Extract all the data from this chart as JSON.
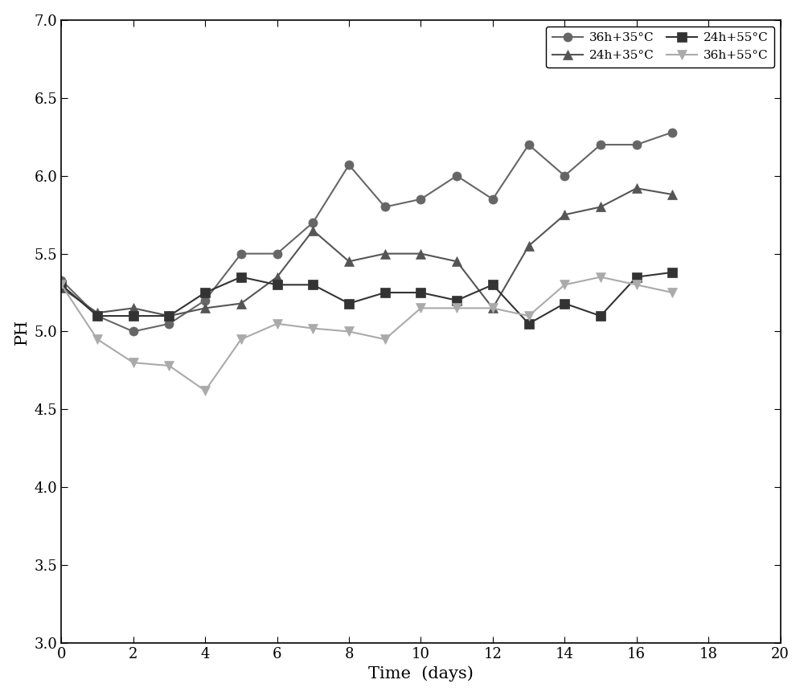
{
  "series": [
    {
      "label": "36h+35°C",
      "color": "#666666",
      "marker": "o",
      "markersize": 8,
      "linewidth": 1.5,
      "x": [
        0,
        1,
        2,
        3,
        4,
        5,
        6,
        7,
        8,
        9,
        10,
        11,
        12,
        13,
        14,
        15,
        16,
        17
      ],
      "y": [
        5.33,
        5.1,
        5.0,
        5.05,
        5.2,
        5.5,
        5.5,
        5.7,
        6.07,
        5.8,
        5.85,
        6.0,
        5.85,
        6.2,
        6.0,
        6.2,
        6.2,
        6.28
      ]
    },
    {
      "label": "24h+35°C",
      "color": "#555555",
      "marker": "^",
      "markersize": 8,
      "linewidth": 1.5,
      "x": [
        0,
        1,
        2,
        3,
        4,
        5,
        6,
        7,
        8,
        9,
        10,
        11,
        12,
        13,
        14,
        15,
        16,
        17
      ],
      "y": [
        5.28,
        5.12,
        5.15,
        5.1,
        5.15,
        5.18,
        5.35,
        5.65,
        5.45,
        5.5,
        5.5,
        5.45,
        5.15,
        5.55,
        5.75,
        5.8,
        5.92,
        5.88
      ]
    },
    {
      "label": "24h+55°C",
      "color": "#333333",
      "marker": "s",
      "markersize": 8,
      "linewidth": 1.5,
      "x": [
        0,
        1,
        2,
        3,
        4,
        5,
        6,
        7,
        8,
        9,
        10,
        11,
        12,
        13,
        14,
        15,
        16,
        17
      ],
      "y": [
        5.3,
        5.1,
        5.1,
        5.1,
        5.25,
        5.35,
        5.3,
        5.3,
        5.18,
        5.25,
        5.25,
        5.2,
        5.3,
        5.05,
        5.18,
        5.1,
        5.35,
        5.38
      ]
    },
    {
      "label": "36h+55°C",
      "color": "#aaaaaa",
      "marker": "v",
      "markersize": 8,
      "linewidth": 1.5,
      "x": [
        0,
        1,
        2,
        3,
        4,
        5,
        6,
        7,
        8,
        9,
        10,
        11,
        12,
        13,
        14,
        15,
        16,
        17
      ],
      "y": [
        5.3,
        4.95,
        4.8,
        4.78,
        4.62,
        4.95,
        5.05,
        5.02,
        5.0,
        4.95,
        5.15,
        5.15,
        5.15,
        5.1,
        5.3,
        5.35,
        5.3,
        5.25
      ]
    }
  ],
  "xlabel": "Time  (days)",
  "ylabel": "PH",
  "xlim": [
    0,
    20
  ],
  "ylim": [
    3.0,
    7.0
  ],
  "xticks": [
    0,
    2,
    4,
    6,
    8,
    10,
    12,
    14,
    16,
    18,
    20
  ],
  "yticks": [
    3.0,
    3.5,
    4.0,
    4.5,
    5.0,
    5.5,
    6.0,
    6.5,
    7.0
  ],
  "legend_order": [
    0,
    1,
    2,
    3
  ],
  "legend_loc": "upper right",
  "legend_ncol": 2,
  "figsize": [
    10.0,
    8.66
  ],
  "dpi": 100,
  "background_color": "#ffffff",
  "tick_fontsize": 13,
  "label_fontsize": 15
}
